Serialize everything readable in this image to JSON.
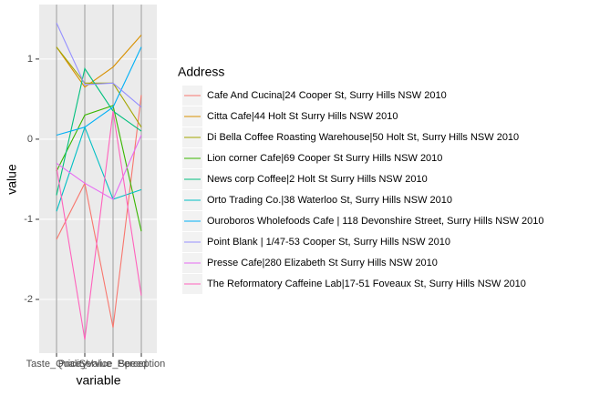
{
  "chart_data": {
    "type": "line",
    "x_label": "variable",
    "y_label": "value",
    "legend_title": "Address",
    "categories": [
      "Taste_Quality",
      "Price_Value",
      "Service_Speed",
      "Perception"
    ],
    "ylim": [
      -2.67,
      1.68
    ],
    "yticks": [
      1,
      0,
      -1,
      -2
    ],
    "grid": true,
    "series": [
      {
        "name": "Cafe And Cucina|24 Cooper St, Surry Hills NSW 2010",
        "color": "#F8766D",
        "values": [
          -1.25,
          -0.55,
          -2.35,
          0.55
        ]
      },
      {
        "name": "Citta Cafe|44 Holt St Surry Hills NSW 2010",
        "color": "#D89000",
        "values": [
          1.15,
          0.65,
          0.9,
          1.3
        ]
      },
      {
        "name": "Di Bella Coffee Roasting Warehouse|50 Holt St, Surry Hills NSW 2010",
        "color": "#A3A500",
        "values": [
          1.15,
          0.7,
          0.7,
          0.15
        ]
      },
      {
        "name": "Lion corner Cafe|69 Cooper St Surry Hills NSW 2010",
        "color": "#39B600",
        "values": [
          -0.4,
          0.3,
          0.42,
          -1.15
        ]
      },
      {
        "name": "News corp Coffee|2 Holt St Surry Hills NSW 2010",
        "color": "#00BF7D",
        "values": [
          -0.7,
          0.88,
          0.35,
          0.1
        ]
      },
      {
        "name": "Orto Trading Co.|38 Waterloo St, Surry Hills NSW 2010",
        "color": "#00BFC4",
        "values": [
          -0.9,
          0.15,
          -0.75,
          -0.63
        ]
      },
      {
        "name": "Ouroboros Wholefoods Cafe | 118 Devonshire Street, Surry Hills NSW 2010",
        "color": "#00B0F6",
        "values": [
          0.05,
          0.15,
          0.4,
          1.15
        ]
      },
      {
        "name": "Point Blank | 1/47-53 Cooper St, Surry Hills NSW 2010",
        "color": "#9590FF",
        "values": [
          1.45,
          0.68,
          0.7,
          0.4
        ]
      },
      {
        "name": "Presse Cafe|280 Elizabeth St Surry Hills NSW 2010",
        "color": "#E76BF3",
        "values": [
          -0.3,
          -0.55,
          -0.75,
          0.05
        ]
      },
      {
        "name": "The Reformatory Caffeine Lab|17-51 Foveaux St, Surry Hills NSW 2010",
        "color": "#FF62BC",
        "values": [
          -0.35,
          -2.5,
          0.35,
          -1.95
        ]
      }
    ]
  }
}
